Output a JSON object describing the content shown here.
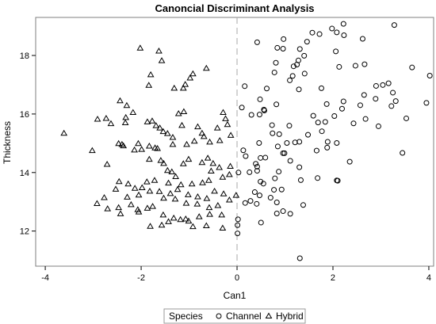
{
  "chart_data": {
    "type": "scatter",
    "title": "Canoncial Discriminant Analysis",
    "xlabel": "Can1",
    "ylabel": "Thickness",
    "xlim": [
      -4.2,
      4.1
    ],
    "ylim": [
      10.8,
      19.3
    ],
    "x_ticks": [
      -4,
      -2,
      0,
      2,
      4
    ],
    "y_ticks": [
      12,
      14,
      16,
      18
    ],
    "reference_line": {
      "axis": "x",
      "value": 0,
      "style": "dashed",
      "color": "#a8a8a8"
    },
    "grid": false,
    "legend": {
      "position": "bottom",
      "title": "Species",
      "entries": [
        "Channel",
        "Hybrid"
      ]
    },
    "series": [
      {
        "name": "Channel",
        "marker": "circle",
        "points": [
          [
            3.28,
            19.04
          ],
          [
            2.22,
            19.08
          ],
          [
            1.98,
            18.92
          ],
          [
            2.08,
            18.79
          ],
          [
            2.23,
            18.69
          ],
          [
            1.57,
            18.78
          ],
          [
            1.72,
            18.73
          ],
          [
            2.62,
            18.57
          ],
          [
            0.97,
            18.56
          ],
          [
            0.42,
            18.45
          ],
          [
            1.46,
            18.47
          ],
          [
            0.84,
            18.26
          ],
          [
            0.96,
            18.23
          ],
          [
            1.31,
            18.22
          ],
          [
            2.06,
            18.14
          ],
          [
            1.28,
            17.83
          ],
          [
            1.4,
            17.99
          ],
          [
            0.81,
            17.75
          ],
          [
            1.25,
            17.69
          ],
          [
            1.18,
            17.63
          ],
          [
            2.47,
            17.65
          ],
          [
            2.66,
            17.7
          ],
          [
            2.13,
            17.61
          ],
          [
            3.65,
            17.59
          ],
          [
            0.78,
            17.42
          ],
          [
            1.16,
            17.3
          ],
          [
            1.41,
            17.38
          ],
          [
            1.1,
            17.15
          ],
          [
            4.02,
            17.31
          ],
          [
            3.16,
            17.05
          ],
          [
            2.9,
            16.96
          ],
          [
            3.04,
            16.99
          ],
          [
            0.16,
            16.95
          ],
          [
            1.76,
            16.88
          ],
          [
            1.29,
            16.84
          ],
          [
            0.62,
            16.87
          ],
          [
            3.25,
            16.73
          ],
          [
            2.65,
            16.65
          ],
          [
            2.22,
            16.43
          ],
          [
            1.87,
            16.34
          ],
          [
            2.57,
            16.3
          ],
          [
            0.82,
            16.33
          ],
          [
            0.48,
            16.5
          ],
          [
            3.31,
            16.44
          ],
          [
            2.89,
            16.52
          ],
          [
            3.22,
            16.27
          ],
          [
            3.95,
            16.38
          ],
          [
            2.19,
            16.18
          ],
          [
            0.1,
            16.22
          ],
          [
            0.56,
            16.15
          ],
          [
            0.57,
            16.12
          ],
          [
            0.47,
            15.98
          ],
          [
            1.59,
            15.94
          ],
          [
            2.03,
            15.93
          ],
          [
            3.53,
            15.85
          ],
          [
            0.3,
            15.97
          ],
          [
            2.68,
            15.83
          ],
          [
            1.84,
            15.73
          ],
          [
            1.69,
            15.71
          ],
          [
            2.43,
            15.68
          ],
          [
            0.73,
            15.62
          ],
          [
            1.09,
            15.6
          ],
          [
            1.77,
            15.41
          ],
          [
            2.95,
            15.58
          ],
          [
            1.48,
            15.29
          ],
          [
            0.88,
            15.31
          ],
          [
            0.74,
            15.34
          ],
          [
            1.89,
            15.05
          ],
          [
            1.3,
            15.05
          ],
          [
            1.21,
            15.03
          ],
          [
            0.46,
            15.01
          ],
          [
            1.04,
            15.01
          ],
          [
            2.08,
            15.01
          ],
          [
            0.85,
            14.89
          ],
          [
            1.88,
            14.85
          ],
          [
            1.66,
            14.75
          ],
          [
            0.13,
            14.76
          ],
          [
            0.96,
            14.66
          ],
          [
            0.99,
            14.66
          ],
          [
            3.45,
            14.67
          ],
          [
            0.59,
            14.51
          ],
          [
            0.18,
            14.56
          ],
          [
            0.49,
            14.5
          ],
          [
            1.11,
            14.4
          ],
          [
            2.35,
            14.37
          ],
          [
            0.39,
            14.3
          ],
          [
            0.42,
            14.2
          ],
          [
            1.3,
            14.18
          ],
          [
            0.42,
            14.06
          ],
          [
            0.87,
            14.03
          ],
          [
            0.03,
            14.0
          ],
          [
            0.26,
            14.01
          ],
          [
            0.79,
            13.8
          ],
          [
            1.68,
            13.81
          ],
          [
            1.33,
            13.74
          ],
          [
            2.08,
            13.73
          ],
          [
            2.1,
            13.72
          ],
          [
            0.49,
            13.69
          ],
          [
            0.55,
            13.62
          ],
          [
            0.37,
            13.33
          ],
          [
            0.47,
            13.22
          ],
          [
            0.77,
            13.41
          ],
          [
            0.93,
            13.42
          ],
          [
            0.28,
            13.03
          ],
          [
            0.17,
            12.96
          ],
          [
            0.83,
            12.98
          ],
          [
            0.41,
            12.93
          ],
          [
            0.7,
            13.14
          ],
          [
            0.96,
            12.68
          ],
          [
            1.38,
            12.89
          ],
          [
            1.11,
            12.59
          ],
          [
            0.83,
            12.6
          ],
          [
            0.02,
            12.4
          ],
          [
            0.01,
            12.2
          ],
          [
            0.5,
            12.29
          ],
          [
            0.01,
            11.92
          ],
          [
            1.31,
            11.07
          ]
        ]
      },
      {
        "name": "Hybrid",
        "marker": "triangle",
        "points": [
          [
            -2.02,
            18.25
          ],
          [
            -1.63,
            18.15
          ],
          [
            -1.57,
            17.82
          ],
          [
            -0.64,
            17.56
          ],
          [
            -0.92,
            17.37
          ],
          [
            -1.8,
            17.34
          ],
          [
            -0.98,
            17.23
          ],
          [
            -1.84,
            16.98
          ],
          [
            -1.08,
            17.01
          ],
          [
            -1.12,
            16.88
          ],
          [
            -1.31,
            16.88
          ],
          [
            -2.44,
            16.45
          ],
          [
            -2.3,
            16.29
          ],
          [
            -2.17,
            16.05
          ],
          [
            -1.11,
            16.08
          ],
          [
            -1.22,
            16.01
          ],
          [
            -0.29,
            16.05
          ],
          [
            -0.24,
            15.84
          ],
          [
            -0.2,
            15.64
          ],
          [
            -3.61,
            15.34
          ],
          [
            -2.91,
            15.82
          ],
          [
            -2.73,
            15.85
          ],
          [
            -2.63,
            15.67
          ],
          [
            -2.32,
            15.88
          ],
          [
            -2.33,
            15.7
          ],
          [
            -1.87,
            15.73
          ],
          [
            -1.77,
            15.76
          ],
          [
            -1.69,
            15.6
          ],
          [
            -1.61,
            15.52
          ],
          [
            -1.54,
            15.4
          ],
          [
            -1.45,
            15.33
          ],
          [
            -1.34,
            15.2
          ],
          [
            -1.15,
            15.61
          ],
          [
            -0.82,
            15.56
          ],
          [
            -0.73,
            15.34
          ],
          [
            -0.41,
            15.52
          ],
          [
            -0.69,
            15.23
          ],
          [
            -0.13,
            15.27
          ],
          [
            -0.36,
            15.09
          ],
          [
            -0.57,
            15.04
          ],
          [
            -0.89,
            15.07
          ],
          [
            -1.05,
            14.96
          ],
          [
            -1.34,
            14.96
          ],
          [
            -1.83,
            14.9
          ],
          [
            -1.71,
            14.84
          ],
          [
            -1.66,
            14.82
          ],
          [
            -1.99,
            14.79
          ],
          [
            -2.14,
            14.77
          ],
          [
            -2.06,
            14.99
          ],
          [
            -2.37,
            14.91
          ],
          [
            -2.47,
            14.99
          ],
          [
            -2.4,
            14.96
          ],
          [
            -3.02,
            14.75
          ],
          [
            -2.71,
            14.28
          ],
          [
            -1.83,
            14.45
          ],
          [
            -1.59,
            14.41
          ],
          [
            -1.53,
            14.31
          ],
          [
            -1.45,
            14.07
          ],
          [
            -1.36,
            14.02
          ],
          [
            -1.28,
            13.86
          ],
          [
            -1.12,
            14.3
          ],
          [
            -1.01,
            14.45
          ],
          [
            -0.73,
            14.34
          ],
          [
            -0.61,
            14.49
          ],
          [
            -0.5,
            14.31
          ],
          [
            -0.54,
            14.05
          ],
          [
            -0.37,
            14.17
          ],
          [
            -0.14,
            14.21
          ],
          [
            -0.16,
            13.93
          ],
          [
            -0.3,
            13.84
          ],
          [
            -0.59,
            13.73
          ],
          [
            -0.72,
            13.65
          ],
          [
            -0.94,
            13.61
          ],
          [
            -1.17,
            13.58
          ],
          [
            -1.43,
            13.64
          ],
          [
            -1.72,
            13.73
          ],
          [
            -1.88,
            13.68
          ],
          [
            -1.98,
            13.48
          ],
          [
            -2.13,
            13.46
          ],
          [
            -2.27,
            13.61
          ],
          [
            -2.46,
            13.69
          ],
          [
            -2.53,
            13.43
          ],
          [
            -2.29,
            13.16
          ],
          [
            -2.05,
            13.23
          ],
          [
            -1.82,
            13.36
          ],
          [
            -1.62,
            13.35
          ],
          [
            -1.39,
            13.28
          ],
          [
            -1.24,
            13.42
          ],
          [
            -1.02,
            13.24
          ],
          [
            -0.82,
            13.17
          ],
          [
            -0.63,
            13.11
          ],
          [
            -0.47,
            13.36
          ],
          [
            -0.28,
            13.27
          ],
          [
            -0.02,
            13.22
          ],
          [
            -0.16,
            13.06
          ],
          [
            -0.4,
            12.87
          ],
          [
            -0.58,
            12.8
          ],
          [
            -0.83,
            12.92
          ],
          [
            -1.06,
            12.95
          ],
          [
            -1.29,
            13.09
          ],
          [
            -1.53,
            13.12
          ],
          [
            -1.76,
            12.84
          ],
          [
            -1.87,
            12.78
          ],
          [
            -2.07,
            12.73
          ],
          [
            -2.21,
            12.9
          ],
          [
            -2.47,
            12.8
          ],
          [
            -2.77,
            13.14
          ],
          [
            -2.92,
            12.94
          ],
          [
            -2.7,
            12.76
          ],
          [
            -2.43,
            12.59
          ],
          [
            -2.05,
            12.65
          ],
          [
            -1.54,
            12.55
          ],
          [
            -1.32,
            12.44
          ],
          [
            -1.07,
            12.41
          ],
          [
            -0.79,
            12.49
          ],
          [
            -0.57,
            12.57
          ],
          [
            -0.32,
            12.55
          ],
          [
            -1.01,
            12.34
          ],
          [
            -1.43,
            12.32
          ],
          [
            -1.57,
            12.2
          ],
          [
            -1.81,
            12.16
          ],
          [
            -0.92,
            12.15
          ],
          [
            -0.64,
            12.18
          ],
          [
            -0.3,
            12.1
          ],
          [
            -1.18,
            12.39
          ]
        ]
      }
    ]
  }
}
